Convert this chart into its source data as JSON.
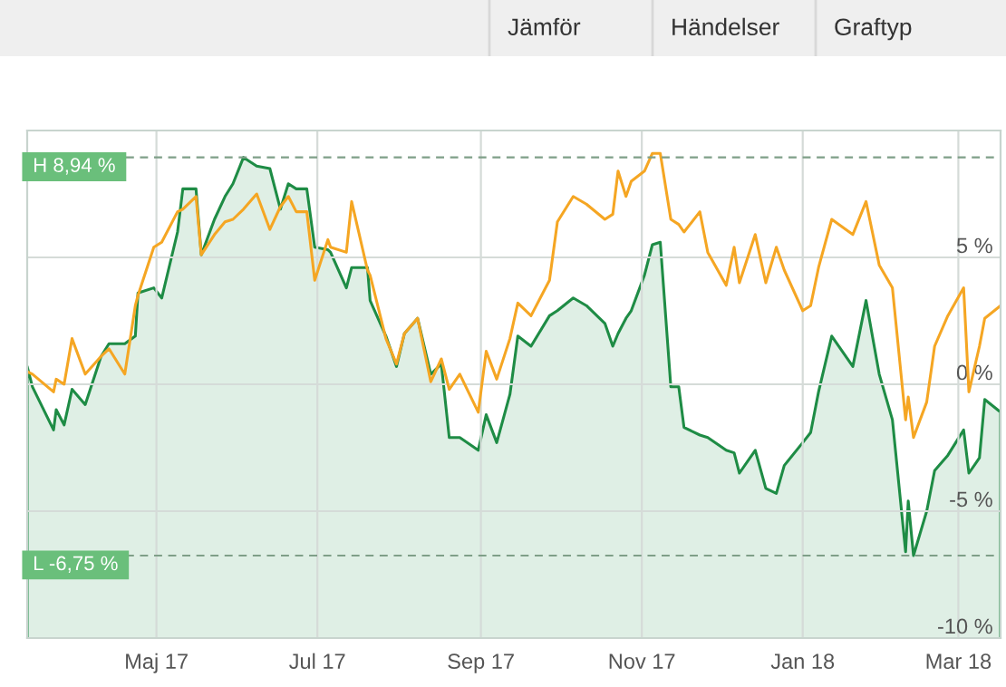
{
  "chart_data": {
    "type": "line",
    "x": [
      "2017-03-13",
      "2017-03-15",
      "2017-03-23",
      "2017-03-24",
      "2017-03-27",
      "2017-03-30",
      "2017-04-04",
      "2017-04-10",
      "2017-04-13",
      "2017-04-19",
      "2017-04-23",
      "2017-04-24",
      "2017-04-30",
      "2017-05-03",
      "2017-05-09",
      "2017-05-11",
      "2017-05-16",
      "2017-05-18",
      "2017-05-23",
      "2017-05-27",
      "2017-05-30",
      "2017-06-03",
      "2017-06-08",
      "2017-06-13",
      "2017-06-17",
      "2017-06-20",
      "2017-06-23",
      "2017-06-27",
      "2017-06-30",
      "2017-07-05",
      "2017-07-06",
      "2017-07-12",
      "2017-07-14",
      "2017-07-20",
      "2017-07-21",
      "2017-07-27",
      "2017-07-31",
      "2017-08-03",
      "2017-08-08",
      "2017-08-13",
      "2017-08-17",
      "2017-08-20",
      "2017-08-24",
      "2017-08-31",
      "2017-09-03",
      "2017-09-07",
      "2017-09-12",
      "2017-09-15",
      "2017-09-20",
      "2017-09-27",
      "2017-09-30",
      "2017-10-06",
      "2017-10-11",
      "2017-10-18",
      "2017-10-21",
      "2017-10-23",
      "2017-10-26",
      "2017-10-28",
      "2017-11-02",
      "2017-11-05",
      "2017-11-08",
      "2017-11-12",
      "2017-11-15",
      "2017-11-17",
      "2017-11-23",
      "2017-11-26",
      "2017-12-03",
      "2017-12-06",
      "2017-12-08",
      "2017-12-14",
      "2017-12-18",
      "2017-12-22",
      "2017-12-25",
      "2018-01-01",
      "2018-01-04",
      "2018-01-07",
      "2018-01-12",
      "2018-01-20",
      "2018-01-25",
      "2018-01-30",
      "2018-02-04",
      "2018-02-09",
      "2018-02-10",
      "2018-02-12",
      "2018-02-17",
      "2018-02-20",
      "2018-02-25",
      "2018-03-03",
      "2018-03-05",
      "2018-03-09",
      "2018-03-11",
      "2018-03-17"
    ],
    "series": [
      {
        "type": "area",
        "color": "#1e8c45",
        "values": [
          0.7,
          -0.1,
          -1.8,
          -1.0,
          -1.6,
          -0.2,
          -0.8,
          1.1,
          1.6,
          1.6,
          1.9,
          3.6,
          3.8,
          3.4,
          6.0,
          7.7,
          7.7,
          5.1,
          6.5,
          7.4,
          7.9,
          8.94,
          8.6,
          8.5,
          6.9,
          7.9,
          7.7,
          7.7,
          5.4,
          5.3,
          5.2,
          3.8,
          4.6,
          4.6,
          3.3,
          1.9,
          0.7,
          2.0,
          2.6,
          0.4,
          0.8,
          -2.1,
          -2.1,
          -2.6,
          -1.2,
          -2.3,
          -0.4,
          1.9,
          1.5,
          2.7,
          2.9,
          3.4,
          3.1,
          2.4,
          1.5,
          2.0,
          2.6,
          2.9,
          4.3,
          5.5,
          5.6,
          -0.1,
          -0.1,
          -1.7,
          -2.0,
          -2.1,
          -2.6,
          -2.7,
          -3.5,
          -2.6,
          -4.1,
          -4.3,
          -3.2,
          -2.3,
          -1.9,
          -0.3,
          1.9,
          0.7,
          3.3,
          0.4,
          -1.4,
          -6.6,
          -4.6,
          -6.75,
          -5.0,
          -3.4,
          -2.8,
          -1.8,
          -3.5,
          -2.9,
          -0.6,
          -1.1
        ]
      },
      {
        "color": "#f5a623",
        "values": [
          0.5,
          0.4,
          -0.3,
          0.2,
          0.0,
          1.8,
          0.4,
          1.1,
          1.4,
          0.4,
          3.1,
          3.5,
          5.4,
          5.6,
          6.8,
          6.9,
          7.4,
          5.1,
          5.9,
          6.4,
          6.5,
          6.9,
          7.5,
          6.1,
          7.0,
          7.4,
          6.8,
          6.8,
          4.1,
          5.7,
          5.4,
          5.2,
          7.2,
          4.5,
          4.3,
          1.8,
          0.8,
          2.0,
          2.6,
          0.1,
          1.0,
          -0.2,
          0.4,
          -1.1,
          1.3,
          0.2,
          1.8,
          3.2,
          2.7,
          4.1,
          6.4,
          7.4,
          7.1,
          6.5,
          6.7,
          8.4,
          7.4,
          8.0,
          8.4,
          9.1,
          9.1,
          6.5,
          6.3,
          6.0,
          6.8,
          5.2,
          3.9,
          5.4,
          4.0,
          5.9,
          4.0,
          5.4,
          4.5,
          2.9,
          3.1,
          4.6,
          6.5,
          5.9,
          7.2,
          4.7,
          3.8,
          -1.4,
          -0.5,
          -2.1,
          -0.7,
          1.5,
          2.7,
          3.8,
          -0.3,
          1.5,
          2.6,
          3.1
        ]
      }
    ],
    "xlim": [
      "2017-03-13",
      "2018-03-17"
    ],
    "xticks": [
      {
        "value": "2017-05-01",
        "label": "Maj 17"
      },
      {
        "value": "2017-07-01",
        "label": "Jul 17"
      },
      {
        "value": "2017-09-01",
        "label": "Sep 17"
      },
      {
        "value": "2017-11-01",
        "label": "Nov 17"
      },
      {
        "value": "2018-01-01",
        "label": "Jan 18"
      },
      {
        "value": "2018-03-01",
        "label": "Mar 18"
      }
    ],
    "ylim": [
      -10,
      10
    ],
    "yticks": [
      {
        "value": -10,
        "label": "-10 %"
      },
      {
        "value": -5,
        "label": "-5 %"
      },
      {
        "value": 0,
        "label": "0 %"
      },
      {
        "value": 5,
        "label": "5 %"
      }
    ],
    "grid": true,
    "ref_lines": [
      {
        "axis": "y",
        "value": 8.94,
        "label": "H 8,94 %",
        "color": "#7f9f88",
        "line_style": "dashed"
      },
      {
        "axis": "y",
        "value": -6.75,
        "label": "L -6,75 %",
        "color": "#7f9f88",
        "line_style": "dashed"
      }
    ],
    "annotations": [
      "Jämför",
      "Händelser",
      "Graftyp"
    ]
  }
}
